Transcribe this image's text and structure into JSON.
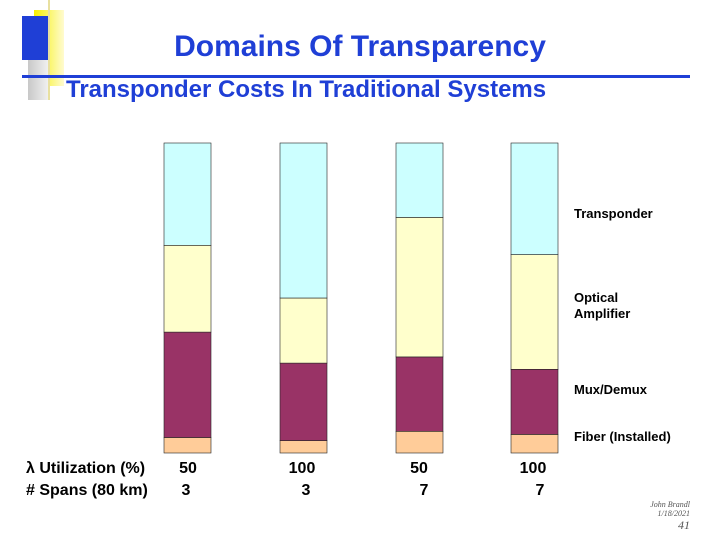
{
  "slide": {
    "title": "Domains Of Transparency",
    "subtitle": "Transponder Costs In Traditional Systems"
  },
  "colors": {
    "accent": "#1f3fd6",
    "transponder": "#ccffff",
    "amplifier": "#ffffcc",
    "muxdemux": "#993366",
    "fiber": "#ffcc99"
  },
  "chart_data": {
    "type": "bar",
    "stacked": true,
    "normalized": true,
    "categories": [
      "50% / 3",
      "100% / 3",
      "50% / 7",
      "100% / 7"
    ],
    "series": [
      {
        "name": "Fiber (Installed)",
        "values": [
          0.05,
          0.04,
          0.07,
          0.06
        ]
      },
      {
        "name": "Mux/Demux",
        "values": [
          0.34,
          0.25,
          0.24,
          0.21
        ]
      },
      {
        "name": "Optical Amplifier",
        "values": [
          0.28,
          0.21,
          0.45,
          0.37
        ]
      },
      {
        "name": "Transponder",
        "values": [
          0.33,
          0.5,
          0.24,
          0.36
        ]
      }
    ],
    "legend": [
      "Transponder",
      "Optical\nAmplifier",
      "Mux/Demux",
      "Fiber (Installed)"
    ],
    "rows": [
      {
        "label": "λ Utilization (%)",
        "values": [
          "50",
          "100",
          "50",
          "100"
        ]
      },
      {
        "label": "# Spans (80 km)",
        "values": [
          "3",
          "3",
          "7",
          "7"
        ]
      }
    ],
    "legend_position": "right",
    "grid": false
  },
  "footer": {
    "author": "John Brandl",
    "date": "1/18/2021",
    "page": "41"
  }
}
